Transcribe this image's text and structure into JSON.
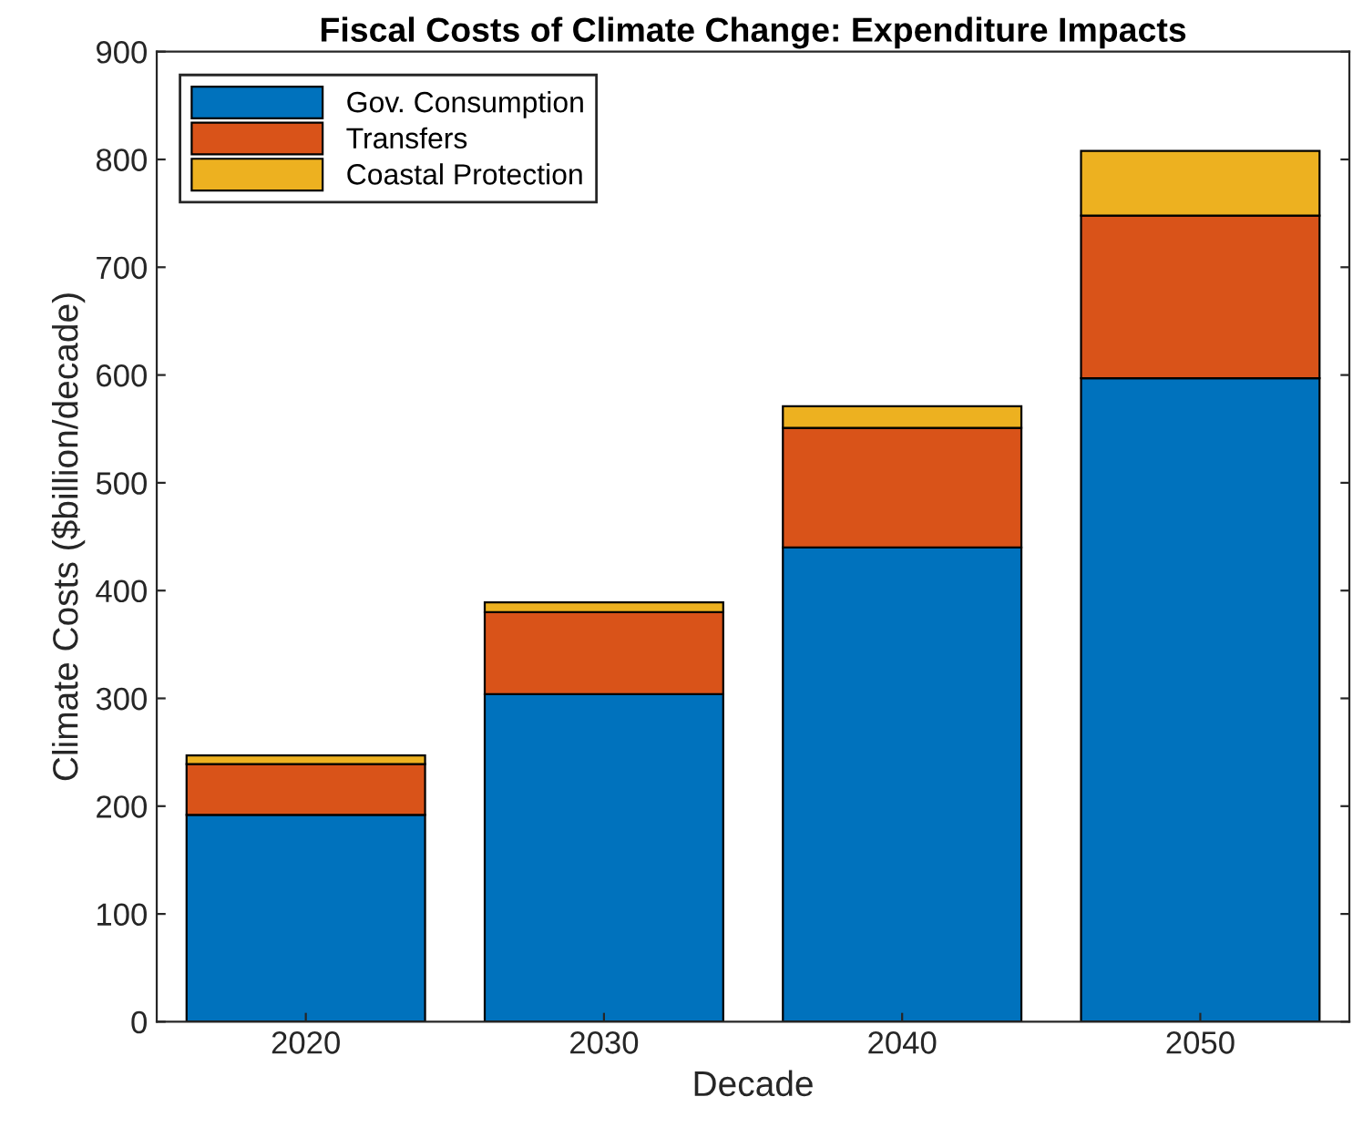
{
  "chart_data": {
    "type": "bar",
    "title": "Fiscal Costs of Climate Change: Expenditure Impacts",
    "xlabel": "Decade",
    "ylabel": "Climate Costs ($billion/decade)",
    "categories": [
      "2020",
      "2030",
      "2040",
      "2050"
    ],
    "stacked": true,
    "series": [
      {
        "name": "Gov. Consumption",
        "color": "#0072bd",
        "values": [
          192,
          304,
          440,
          597
        ]
      },
      {
        "name": "Transfers",
        "color": "#d95319",
        "values": [
          47,
          76,
          111,
          151
        ]
      },
      {
        "name": "Coastal Protection",
        "color": "#edb120",
        "values": [
          8,
          9,
          20,
          60
        ]
      }
    ],
    "ylim": [
      0,
      900
    ],
    "yticks": [
      0,
      100,
      200,
      300,
      400,
      500,
      600,
      700,
      800,
      900
    ],
    "grid": false,
    "legend": "top left"
  }
}
